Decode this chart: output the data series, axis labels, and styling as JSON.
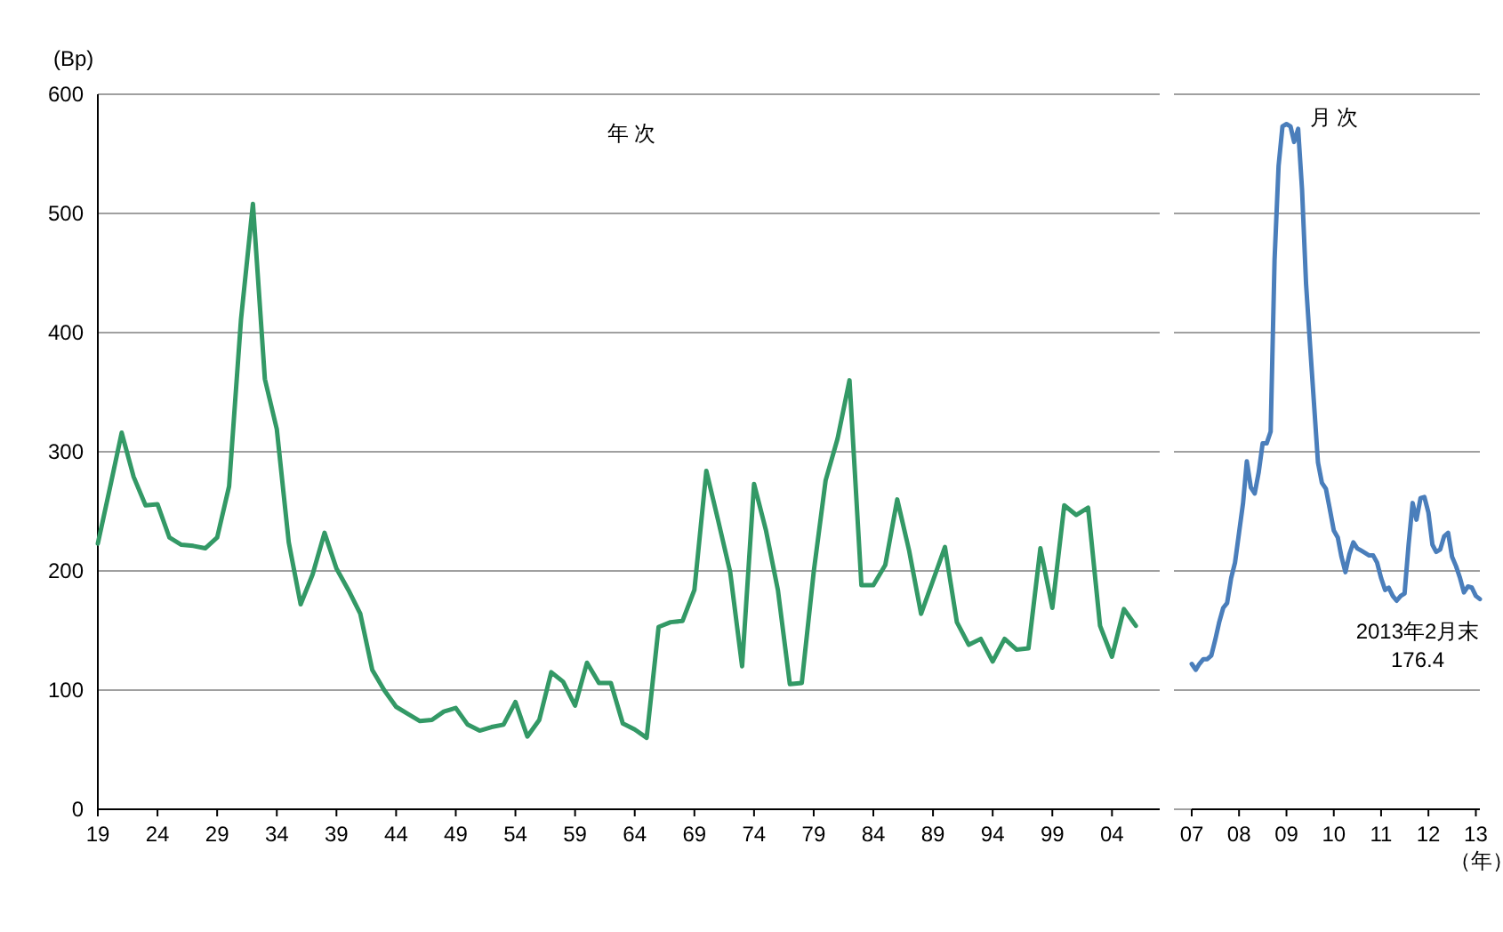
{
  "chart_data": [
    {
      "type": "line",
      "title": "年 次",
      "ylabel": "(Bp)",
      "x": [
        1919,
        1920,
        1921,
        1922,
        1923,
        1924,
        1925,
        1926,
        1927,
        1928,
        1929,
        1930,
        1931,
        1932,
        1933,
        1934,
        1935,
        1936,
        1937,
        1938,
        1939,
        1940,
        1941,
        1942,
        1943,
        1944,
        1945,
        1946,
        1947,
        1948,
        1949,
        1950,
        1951,
        1952,
        1953,
        1954,
        1955,
        1956,
        1957,
        1958,
        1959,
        1960,
        1961,
        1962,
        1963,
        1964,
        1965,
        1966,
        1967,
        1968,
        1969,
        1970,
        1971,
        1972,
        1973,
        1974,
        1975,
        1976,
        1977,
        1978,
        1979,
        1980,
        1981,
        1982,
        1983,
        1984,
        1985,
        1986,
        1987,
        1988,
        1989,
        1990,
        1991,
        1992,
        1993,
        1994,
        1995,
        1996,
        1997,
        1998,
        1999,
        2000,
        2001,
        2002,
        2003,
        2004,
        2005,
        2006
      ],
      "series": [
        {
          "color": "#339966",
          "values": [
            223,
            269,
            316,
            279,
            255,
            256,
            228,
            222,
            221,
            219,
            228,
            271,
            411,
            508,
            361,
            319,
            224,
            172,
            197,
            232,
            202,
            184,
            164,
            117,
            100,
            86,
            80,
            74,
            75,
            82,
            85,
            71,
            66,
            69,
            71,
            90,
            61,
            75,
            115,
            107,
            87,
            123,
            106,
            106,
            72,
            67,
            60,
            153,
            157,
            158,
            184,
            284,
            242,
            199,
            120,
            273,
            234,
            184,
            105,
            106,
            199,
            276,
            311,
            360,
            188,
            188,
            205,
            260,
            217,
            164,
            192,
            220,
            157,
            138,
            143,
            124,
            143,
            134,
            135,
            219,
            169,
            255,
            247,
            253,
            154,
            128,
            168,
            154
          ]
        }
      ],
      "xlim": [
        1919,
        2008
      ],
      "xticks": [
        {
          "value": 1919,
          "label": "19"
        },
        {
          "value": 1924,
          "label": "24"
        },
        {
          "value": 1929,
          "label": "29"
        },
        {
          "value": 1934,
          "label": "34"
        },
        {
          "value": 1939,
          "label": "39"
        },
        {
          "value": 1944,
          "label": "44"
        },
        {
          "value": 1949,
          "label": "49"
        },
        {
          "value": 1954,
          "label": "54"
        },
        {
          "value": 1959,
          "label": "59"
        },
        {
          "value": 1964,
          "label": "64"
        },
        {
          "value": 1969,
          "label": "69"
        },
        {
          "value": 1974,
          "label": "74"
        },
        {
          "value": 1979,
          "label": "79"
        },
        {
          "value": 1984,
          "label": "84"
        },
        {
          "value": 1989,
          "label": "89"
        },
        {
          "value": 1994,
          "label": "94"
        },
        {
          "value": 1999,
          "label": "99"
        },
        {
          "value": 2004,
          "label": "04"
        }
      ],
      "ylim": [
        0,
        600
      ],
      "yticks": [
        0,
        100,
        200,
        300,
        400,
        500,
        600
      ],
      "grid": "y"
    },
    {
      "type": "line",
      "title": "月 次",
      "xlabel": "（年）",
      "x": [
        "2007-01",
        "2007-02",
        "2007-03",
        "2007-04",
        "2007-05",
        "2007-06",
        "2007-07",
        "2007-08",
        "2007-09",
        "2007-10",
        "2007-11",
        "2007-12",
        "2008-01",
        "2008-02",
        "2008-03",
        "2008-04",
        "2008-05",
        "2008-06",
        "2008-07",
        "2008-08",
        "2008-09",
        "2008-10",
        "2008-11",
        "2008-12",
        "2009-01",
        "2009-02",
        "2009-03",
        "2009-04",
        "2009-05",
        "2009-06",
        "2009-07",
        "2009-08",
        "2009-09",
        "2009-10",
        "2009-11",
        "2009-12",
        "2010-01",
        "2010-02",
        "2010-03",
        "2010-04",
        "2010-05",
        "2010-06",
        "2010-07",
        "2010-08",
        "2010-09",
        "2010-10",
        "2010-11",
        "2010-12",
        "2011-01",
        "2011-02",
        "2011-03",
        "2011-04",
        "2011-05",
        "2011-06",
        "2011-07",
        "2011-08",
        "2011-09",
        "2011-10",
        "2011-11",
        "2011-12",
        "2012-01",
        "2012-02",
        "2012-03",
        "2012-04",
        "2012-05",
        "2012-06",
        "2012-07",
        "2012-08",
        "2012-09",
        "2012-10",
        "2012-11",
        "2012-12",
        "2013-01",
        "2013-02"
      ],
      "series": [
        {
          "color": "#4a7ebb",
          "values": [
            122,
            117,
            122,
            126,
            126,
            129,
            142,
            157,
            169,
            173,
            194,
            207,
            232,
            257,
            292,
            270,
            265,
            283,
            307,
            307,
            317,
            461,
            540,
            573,
            575,
            573,
            560,
            571,
            520,
            441,
            391,
            341,
            291,
            274,
            269,
            252,
            234,
            228,
            212,
            199,
            214,
            224,
            219,
            217,
            215,
            213,
            213,
            207,
            194,
            184,
            186,
            179,
            175,
            179,
            181,
            222,
            257,
            243,
            261,
            262,
            249,
            222,
            216,
            218,
            229,
            232,
            212,
            204,
            194,
            182,
            187,
            186,
            179,
            176.4
          ]
        }
      ],
      "xlim": [
        "2007-01",
        "2013-02"
      ],
      "xticks": [
        {
          "value": "2007-01",
          "label": "07"
        },
        {
          "value": "2008-01",
          "label": "08"
        },
        {
          "value": "2009-01",
          "label": "09"
        },
        {
          "value": "2010-01",
          "label": "10"
        },
        {
          "value": "2011-01",
          "label": "11"
        },
        {
          "value": "2012-01",
          "label": "12"
        },
        {
          "value": "2013-01",
          "label": "13"
        }
      ],
      "ylim": [
        0,
        600
      ],
      "yticks": [
        0,
        100,
        200,
        300,
        400,
        500,
        600
      ],
      "grid": "y",
      "tick_labels": "x",
      "annotations": [
        {
          "text": "2013年2月末\n176.4",
          "x": "2013-02",
          "y": 176.4
        }
      ]
    }
  ]
}
